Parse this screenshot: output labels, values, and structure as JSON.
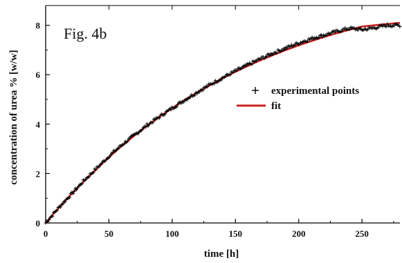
{
  "chart_data": {
    "type": "line",
    "figure_label": "Fig. 4b",
    "xlabel": "time [h]",
    "ylabel": "concentration of urea %  [w/w]",
    "xlim": [
      0,
      280
    ],
    "ylim": [
      0,
      8.8
    ],
    "xticks": [
      0,
      50,
      100,
      150,
      200,
      250
    ],
    "yticks": [
      0,
      2,
      4,
      6,
      8
    ],
    "grid": false,
    "legend_position": "center-right",
    "series": [
      {
        "name": "experimental points",
        "style": "scatter-plus",
        "color": "#000000",
        "x": [
          0,
          10,
          20,
          30,
          40,
          50,
          60,
          70,
          80,
          90,
          100,
          110,
          120,
          130,
          140,
          150,
          160,
          170,
          180,
          190,
          200,
          210,
          220,
          230,
          240,
          250,
          260,
          270,
          280
        ],
        "y": [
          0.0,
          0.6,
          1.15,
          1.7,
          2.2,
          2.7,
          3.15,
          3.55,
          3.95,
          4.3,
          4.65,
          4.98,
          5.3,
          5.6,
          5.88,
          6.15,
          6.4,
          6.65,
          6.88,
          7.08,
          7.28,
          7.46,
          7.6,
          7.75,
          7.88,
          7.82,
          7.9,
          8.0,
          8.0
        ]
      },
      {
        "name": "fit",
        "style": "line",
        "color": "#cc2222",
        "x": [
          0,
          10,
          20,
          30,
          40,
          50,
          60,
          70,
          80,
          90,
          100,
          110,
          120,
          130,
          140,
          150,
          160,
          170,
          180,
          190,
          200,
          210,
          220,
          230,
          240,
          250,
          260,
          270,
          280
        ],
        "y": [
          0.0,
          0.6,
          1.15,
          1.68,
          2.18,
          2.66,
          3.11,
          3.53,
          3.93,
          4.3,
          4.65,
          4.98,
          5.29,
          5.58,
          5.86,
          6.12,
          6.36,
          6.59,
          6.8,
          7.0,
          7.19,
          7.36,
          7.53,
          7.68,
          7.82,
          7.95,
          8.0,
          8.05,
          8.1
        ]
      }
    ]
  }
}
